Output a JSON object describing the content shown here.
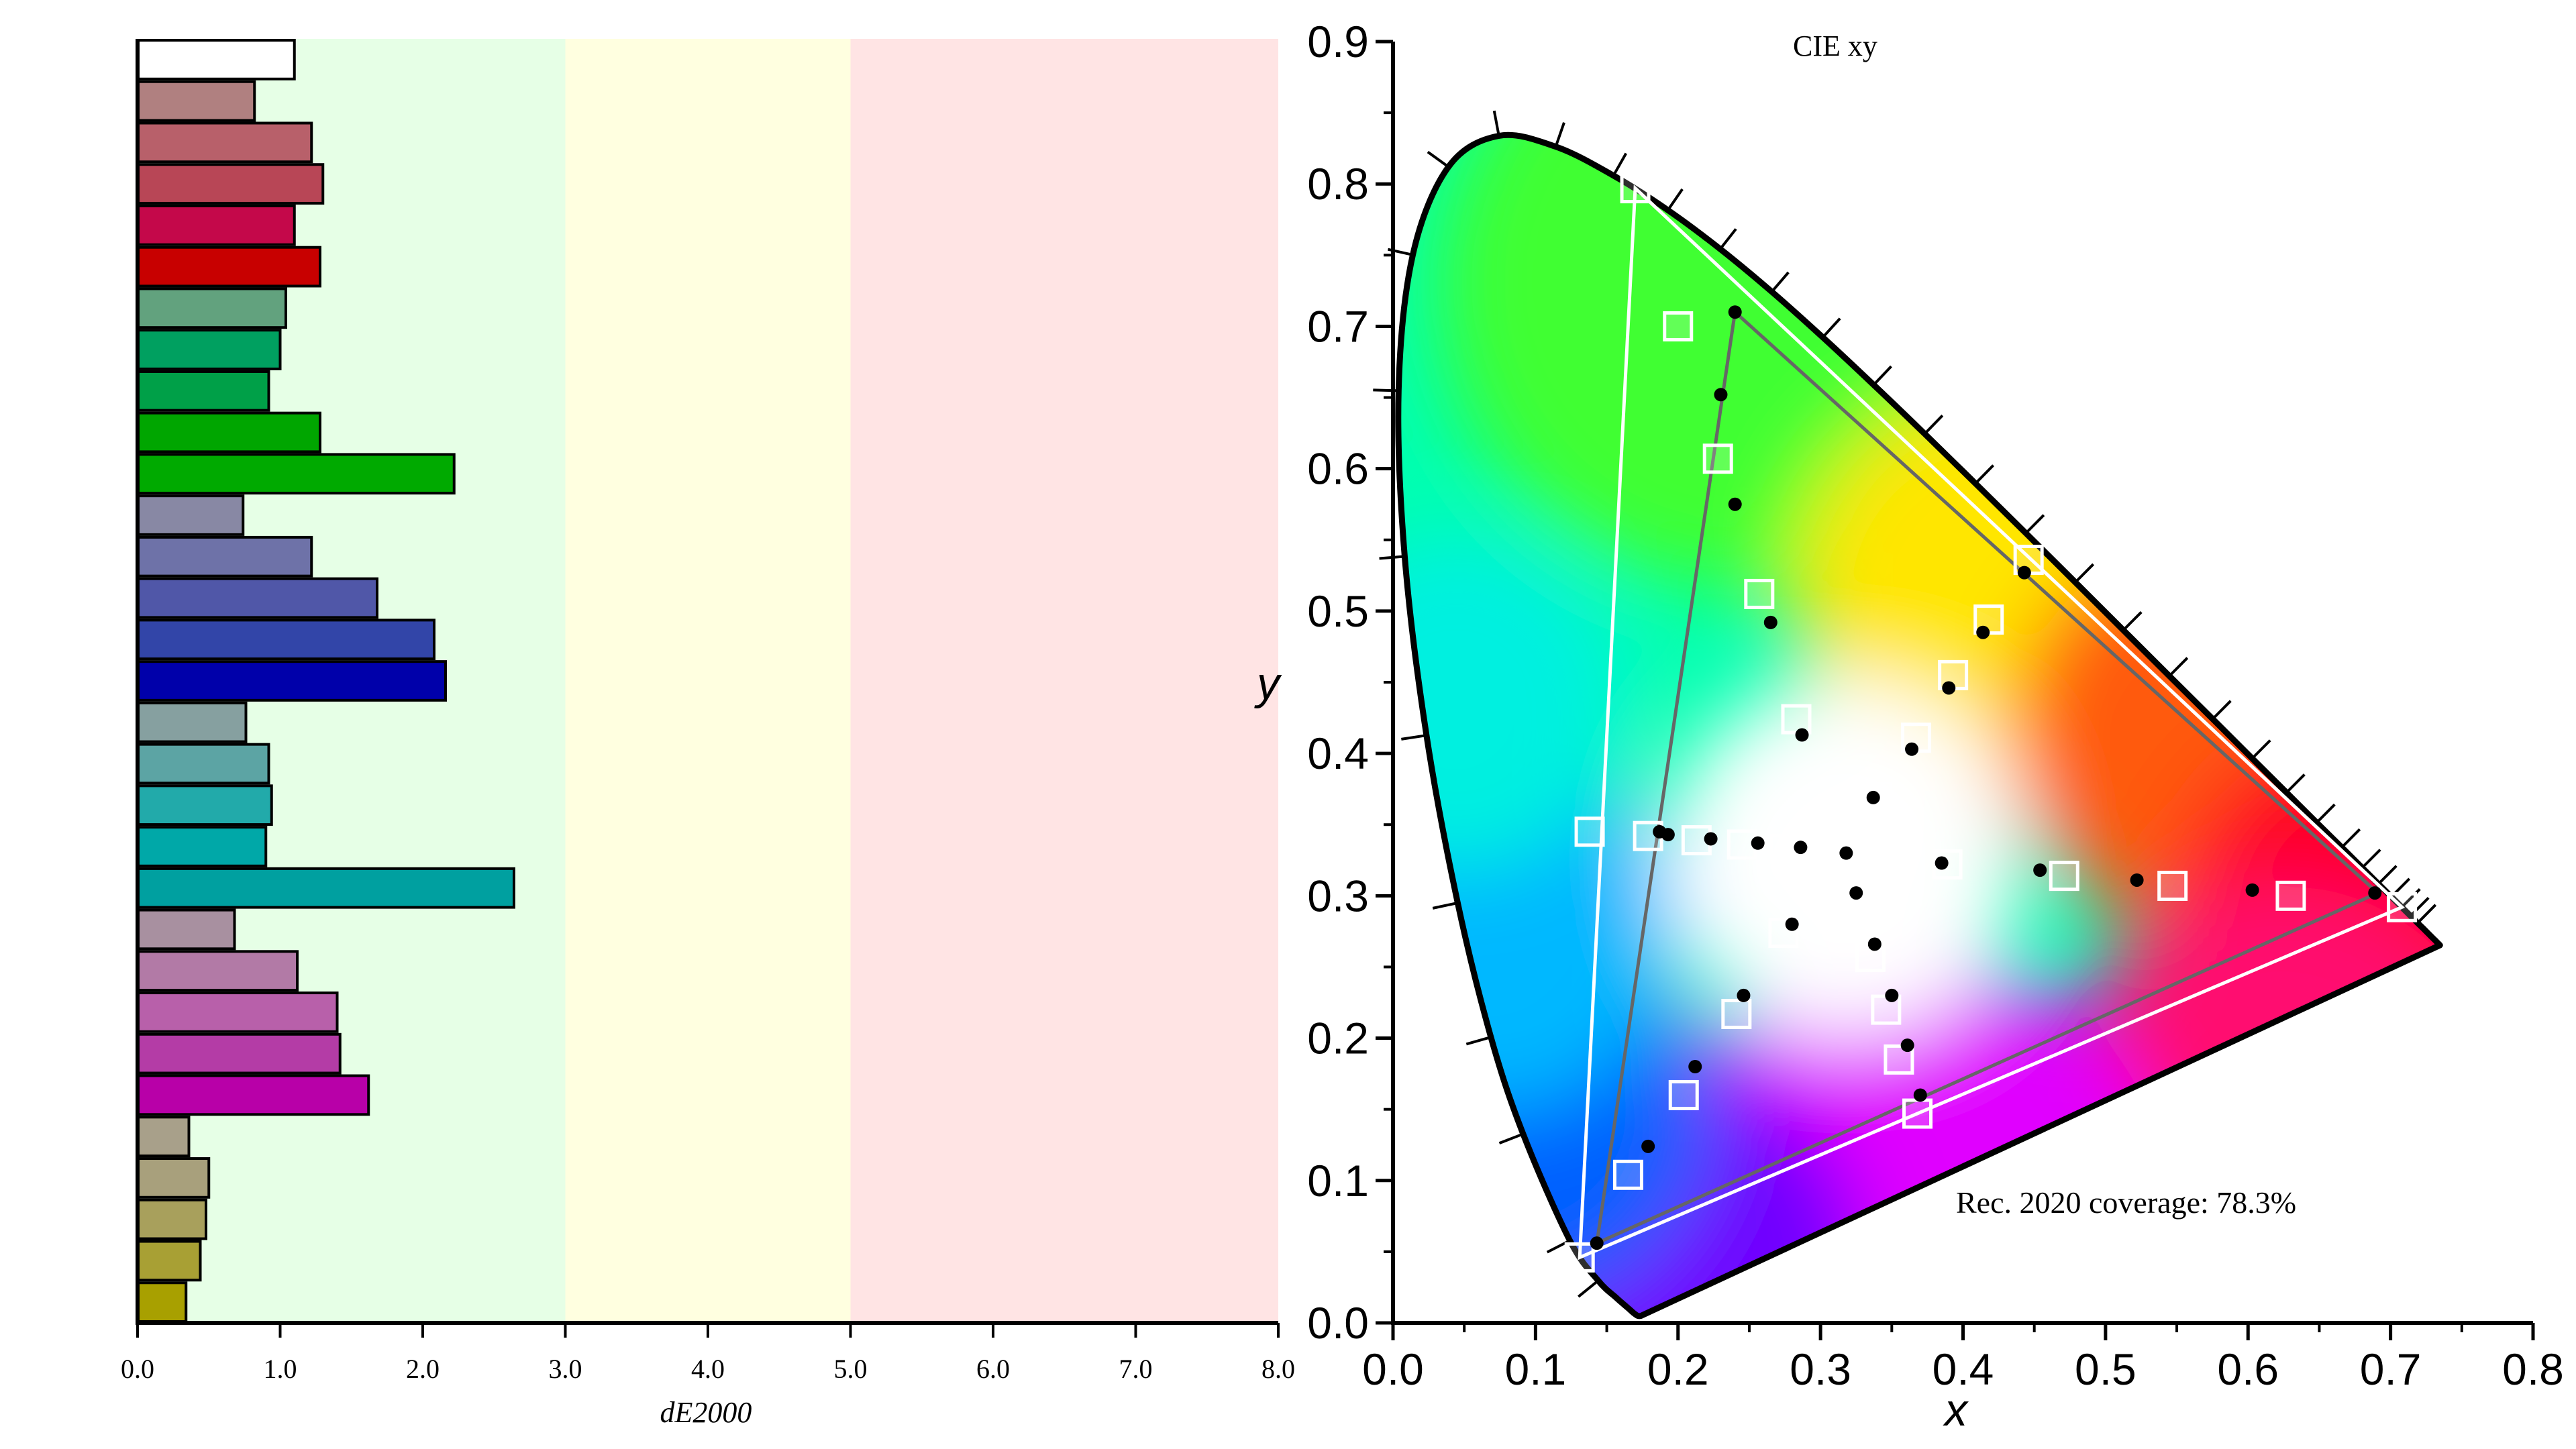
{
  "chart_data": [
    {
      "type": "bar",
      "orientation": "horizontal",
      "xlabel": "dE2000",
      "xlim": [
        0,
        8
      ],
      "xticks": [
        "0.0",
        "1.0",
        "2.0",
        "3.0",
        "4.0",
        "5.0",
        "6.0",
        "7.0",
        "8.0"
      ],
      "zones": [
        {
          "from": 0,
          "to": 3,
          "color": "#e6ffe6"
        },
        {
          "from": 3,
          "to": 5,
          "color": "#ffffe0"
        },
        {
          "from": 5,
          "to": 8,
          "color": "#ffe4e4"
        }
      ],
      "bars": [
        {
          "value": 1.1,
          "color": "#ffffff"
        },
        {
          "value": 0.82,
          "color": "#b08080"
        },
        {
          "value": 1.22,
          "color": "#b8606a"
        },
        {
          "value": 1.3,
          "color": "#b84656"
        },
        {
          "value": 1.1,
          "color": "#c4084a"
        },
        {
          "value": 1.28,
          "color": "#c80000"
        },
        {
          "value": 1.04,
          "color": "#62a27e"
        },
        {
          "value": 1.0,
          "color": "#00a060"
        },
        {
          "value": 0.92,
          "color": "#00a048"
        },
        {
          "value": 1.28,
          "color": "#00a600"
        },
        {
          "value": 2.22,
          "color": "#00aa00"
        },
        {
          "value": 0.74,
          "color": "#8888a4"
        },
        {
          "value": 1.22,
          "color": "#6e72a8"
        },
        {
          "value": 1.68,
          "color": "#5057a8"
        },
        {
          "value": 2.08,
          "color": "#3245a8"
        },
        {
          "value": 2.16,
          "color": "#0000aa"
        },
        {
          "value": 0.76,
          "color": "#86a0a0"
        },
        {
          "value": 0.92,
          "color": "#5ca4a4"
        },
        {
          "value": 0.94,
          "color": "#22aaaa"
        },
        {
          "value": 0.9,
          "color": "#00a8a8"
        },
        {
          "value": 2.64,
          "color": "#00a0a0"
        },
        {
          "value": 0.68,
          "color": "#a890a0"
        },
        {
          "value": 1.12,
          "color": "#b27aa6"
        },
        {
          "value": 1.4,
          "color": "#b860aa"
        },
        {
          "value": 1.42,
          "color": "#b43ca6"
        },
        {
          "value": 1.62,
          "color": "#b800a8"
        },
        {
          "value": 0.36,
          "color": "#a8a08a"
        },
        {
          "value": 0.5,
          "color": "#a8a07c"
        },
        {
          "value": 0.48,
          "color": "#a8a05c"
        },
        {
          "value": 0.44,
          "color": "#a8a034"
        },
        {
          "value": 0.34,
          "color": "#a8a000"
        }
      ]
    },
    {
      "type": "scatter",
      "title": "CIE xy",
      "xlabel": "x",
      "ylabel": "y",
      "xlim": [
        0,
        0.8
      ],
      "ylim": [
        0,
        0.9
      ],
      "xticks": [
        "0.0",
        "0.1",
        "0.2",
        "0.3",
        "0.4",
        "0.5",
        "0.6",
        "0.7",
        "0.8"
      ],
      "yticks": [
        "0.0",
        "0.1",
        "0.2",
        "0.3",
        "0.4",
        "0.5",
        "0.6",
        "0.7",
        "0.8",
        "0.9"
      ],
      "annotation": "Rec. 2020 coverage: 78.3%",
      "locus": [
        [
          0.1741,
          0.005
        ],
        [
          0.174,
          0.005
        ],
        [
          0.1738,
          0.0049
        ],
        [
          0.1733,
          0.0048
        ],
        [
          0.1726,
          0.0048
        ],
        [
          0.1714,
          0.0051
        ],
        [
          0.1689,
          0.0069
        ],
        [
          0.1644,
          0.0109
        ],
        [
          0.1566,
          0.0177
        ],
        [
          0.144,
          0.0297
        ],
        [
          0.1241,
          0.0578
        ],
        [
          0.0913,
          0.1327
        ],
        [
          0.0687,
          0.2007
        ],
        [
          0.0454,
          0.295
        ],
        [
          0.0235,
          0.4127
        ],
        [
          0.0082,
          0.5384
        ],
        [
          0.0039,
          0.6548
        ],
        [
          0.0139,
          0.7502
        ],
        [
          0.0389,
          0.812
        ],
        [
          0.0743,
          0.8338
        ],
        [
          0.1142,
          0.8262
        ],
        [
          0.1547,
          0.8059
        ],
        [
          0.1929,
          0.7816
        ],
        [
          0.2296,
          0.7543
        ],
        [
          0.2658,
          0.7243
        ],
        [
          0.3016,
          0.6923
        ],
        [
          0.3373,
          0.6589
        ],
        [
          0.3731,
          0.6245
        ],
        [
          0.4087,
          0.5896
        ],
        [
          0.4441,
          0.5547
        ],
        [
          0.4788,
          0.5202
        ],
        [
          0.5125,
          0.4866
        ],
        [
          0.5448,
          0.4544
        ],
        [
          0.5752,
          0.4242
        ],
        [
          0.6029,
          0.3965
        ],
        [
          0.627,
          0.3725
        ],
        [
          0.6482,
          0.3514
        ],
        [
          0.6658,
          0.334
        ],
        [
          0.6801,
          0.3197
        ],
        [
          0.6915,
          0.3083
        ],
        [
          0.7006,
          0.2993
        ],
        [
          0.7079,
          0.292
        ],
        [
          0.714,
          0.2859
        ],
        [
          0.719,
          0.2809
        ],
        [
          0.723,
          0.277
        ],
        [
          0.726,
          0.274
        ],
        [
          0.7283,
          0.2717
        ],
        [
          0.73,
          0.27
        ],
        [
          0.7311,
          0.2689
        ],
        [
          0.732,
          0.268
        ],
        [
          0.7334,
          0.2666
        ],
        [
          0.7347,
          0.2653
        ]
      ],
      "triangles": [
        {
          "name": "target",
          "color": "#ffffff",
          "points": [
            [
              0.708,
              0.292
            ],
            [
              0.17,
              0.797
            ],
            [
              0.131,
              0.046
            ]
          ]
        },
        {
          "name": "measured",
          "color": "#666666",
          "points": [
            [
              0.691,
              0.302
            ],
            [
              0.24,
              0.71
            ],
            [
              0.143,
              0.056
            ]
          ]
        }
      ],
      "targets": [
        [
          0.17,
          0.797
        ],
        [
          0.2,
          0.7
        ],
        [
          0.228,
          0.607
        ],
        [
          0.257,
          0.512
        ],
        [
          0.283,
          0.424
        ],
        [
          0.131,
          0.046
        ],
        [
          0.165,
          0.104
        ],
        [
          0.204,
          0.16
        ],
        [
          0.241,
          0.217
        ],
        [
          0.274,
          0.274
        ],
        [
          0.138,
          0.345
        ],
        [
          0.179,
          0.342
        ],
        [
          0.213,
          0.339
        ],
        [
          0.245,
          0.336
        ],
        [
          0.275,
          0.333
        ],
        [
          0.311,
          0.329
        ],
        [
          0.446,
          0.536
        ],
        [
          0.418,
          0.494
        ],
        [
          0.393,
          0.455
        ],
        [
          0.367,
          0.411
        ],
        [
          0.34,
          0.37
        ],
        [
          0.368,
          0.147
        ],
        [
          0.355,
          0.185
        ],
        [
          0.346,
          0.22
        ],
        [
          0.335,
          0.257
        ],
        [
          0.322,
          0.296
        ],
        [
          0.708,
          0.292
        ],
        [
          0.63,
          0.3
        ],
        [
          0.547,
          0.307
        ],
        [
          0.471,
          0.314
        ],
        [
          0.389,
          0.322
        ]
      ],
      "measured": [
        [
          0.24,
          0.71
        ],
        [
          0.23,
          0.652
        ],
        [
          0.24,
          0.575
        ],
        [
          0.265,
          0.492
        ],
        [
          0.287,
          0.413
        ],
        [
          0.143,
          0.056
        ],
        [
          0.179,
          0.124
        ],
        [
          0.212,
          0.18
        ],
        [
          0.246,
          0.23
        ],
        [
          0.28,
          0.28
        ],
        [
          0.187,
          0.345
        ],
        [
          0.193,
          0.343
        ],
        [
          0.223,
          0.34
        ],
        [
          0.256,
          0.337
        ],
        [
          0.286,
          0.334
        ],
        [
          0.318,
          0.33
        ],
        [
          0.443,
          0.527
        ],
        [
          0.414,
          0.485
        ],
        [
          0.39,
          0.446
        ],
        [
          0.364,
          0.403
        ],
        [
          0.337,
          0.369
        ],
        [
          0.37,
          0.16
        ],
        [
          0.361,
          0.195
        ],
        [
          0.35,
          0.23
        ],
        [
          0.338,
          0.266
        ],
        [
          0.325,
          0.302
        ],
        [
          0.689,
          0.302
        ],
        [
          0.603,
          0.304
        ],
        [
          0.522,
          0.311
        ],
        [
          0.454,
          0.318
        ],
        [
          0.385,
          0.323
        ]
      ]
    }
  ]
}
